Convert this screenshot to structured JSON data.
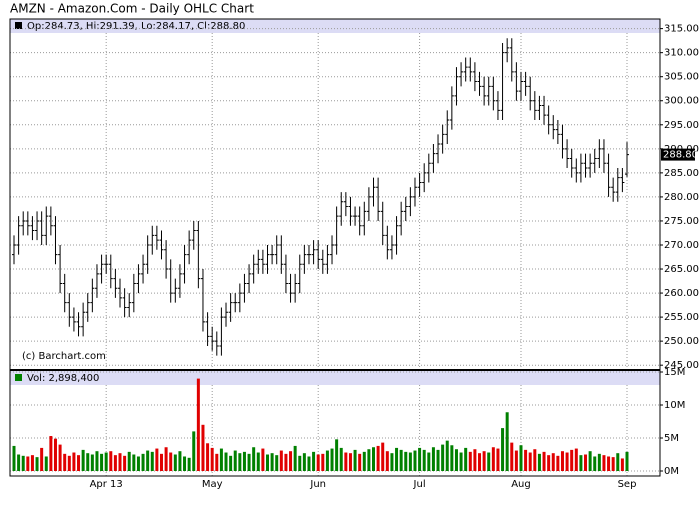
{
  "chart_data": {
    "type": "ohlc",
    "title": "AMZN - Amazon.Com - Daily OHLC Chart",
    "ohlc_legend": "Op:284.73, Hi:291.39, Lo:284.17, Cl:288.80",
    "volume_legend": "Vol: 2,898,400",
    "credit": "(c) Barchart.com",
    "last_price_label": "288.80",
    "categories": [
      null,
      null,
      null,
      null,
      null,
      null,
      null,
      null,
      null,
      null,
      null,
      null,
      null,
      null,
      null,
      null,
      null,
      null,
      null,
      null,
      "Apr 13",
      null,
      null,
      null,
      null,
      null,
      null,
      null,
      null,
      null,
      null,
      null,
      null,
      null,
      null,
      null,
      null,
      null,
      null,
      null,
      null,
      null,
      null,
      "May",
      null,
      null,
      null,
      null,
      null,
      null,
      null,
      null,
      null,
      null,
      null,
      null,
      null,
      null,
      null,
      null,
      null,
      null,
      null,
      null,
      null,
      null,
      "Jun",
      null,
      null,
      null,
      null,
      null,
      null,
      null,
      null,
      null,
      null,
      null,
      null,
      null,
      null,
      null,
      null,
      null,
      null,
      null,
      null,
      null,
      "Jul",
      null,
      null,
      null,
      null,
      null,
      null,
      null,
      null,
      null,
      null,
      null,
      null,
      null,
      null,
      null,
      null,
      null,
      null,
      null,
      null,
      null,
      "Aug",
      null,
      null,
      null,
      null,
      null,
      null,
      null,
      null,
      null,
      null,
      null,
      null,
      null,
      null,
      null,
      null,
      null,
      null,
      null,
      null,
      null,
      null,
      "Sep"
    ],
    "open": [
      268,
      270,
      274,
      275,
      274,
      273,
      275,
      272,
      276,
      274,
      268,
      262,
      258,
      255,
      254,
      253,
      256,
      258,
      261,
      264,
      266,
      266,
      263,
      261,
      259,
      257,
      258,
      262,
      264,
      266,
      270,
      272,
      271,
      269,
      265,
      260,
      261,
      264,
      268,
      271,
      273,
      263,
      254,
      251,
      250,
      249,
      255,
      256,
      258,
      258,
      260,
      262,
      264,
      266,
      267,
      266,
      268,
      268,
      270,
      266,
      262,
      260,
      262,
      266,
      268,
      268,
      269,
      267,
      266,
      268,
      270,
      276,
      279,
      278,
      276,
      276,
      274,
      277,
      280,
      282,
      277,
      272,
      269,
      270,
      274,
      277,
      278,
      280,
      282,
      283,
      285,
      287,
      289,
      291,
      293,
      296,
      301,
      305,
      306,
      307,
      306,
      304,
      303,
      301,
      303,
      300,
      298,
      310,
      311,
      306,
      302,
      304,
      303,
      300,
      298,
      299,
      297,
      295,
      294,
      293,
      290,
      288,
      286,
      285,
      287,
      286,
      287,
      288,
      290,
      287,
      282,
      281,
      284,
      284.73
    ],
    "high": [
      272,
      276,
      277,
      277,
      276,
      277,
      277,
      278,
      278,
      276,
      270,
      264,
      260,
      257,
      256,
      258,
      260,
      263,
      266,
      268,
      268,
      268,
      265,
      263,
      261,
      260,
      264,
      266,
      268,
      272,
      274,
      274,
      273,
      271,
      267,
      263,
      266,
      270,
      273,
      275,
      275,
      265,
      256,
      253,
      252,
      257,
      258,
      260,
      260,
      262,
      264,
      266,
      268,
      269,
      269,
      270,
      270,
      272,
      272,
      268,
      264,
      264,
      268,
      270,
      270,
      271,
      271,
      269,
      270,
      272,
      278,
      281,
      281,
      280,
      278,
      278,
      279,
      282,
      284,
      284,
      279,
      274,
      272,
      276,
      279,
      280,
      282,
      284,
      285,
      287,
      289,
      291,
      293,
      295,
      298,
      303,
      307,
      308,
      309,
      309,
      308,
      306,
      305,
      305,
      305,
      302,
      312,
      313,
      313,
      308,
      306,
      306,
      305,
      302,
      301,
      301,
      299,
      297,
      296,
      295,
      292,
      290,
      288,
      289,
      289,
      289,
      290,
      292,
      292,
      289,
      284,
      286,
      286,
      291.39
    ],
    "low": [
      266,
      268,
      272,
      272,
      271,
      271,
      270,
      270,
      272,
      266,
      260,
      256,
      253,
      252,
      251,
      251,
      254,
      256,
      259,
      262,
      264,
      261,
      259,
      257,
      255,
      255,
      256,
      260,
      262,
      264,
      268,
      269,
      267,
      263,
      258,
      258,
      259,
      262,
      266,
      269,
      261,
      252,
      249,
      248,
      247,
      247,
      253,
      254,
      256,
      256,
      258,
      260,
      262,
      264,
      264,
      264,
      266,
      266,
      264,
      260,
      258,
      258,
      260,
      264,
      266,
      266,
      265,
      264,
      264,
      266,
      268,
      274,
      276,
      274,
      274,
      272,
      272,
      275,
      278,
      275,
      270,
      267,
      267,
      268,
      272,
      275,
      276,
      278,
      280,
      281,
      283,
      285,
      287,
      289,
      291,
      294,
      299,
      303,
      304,
      304,
      302,
      301,
      299,
      299,
      298,
      296,
      296,
      308,
      304,
      300,
      300,
      301,
      298,
      296,
      296,
      295,
      293,
      292,
      291,
      288,
      286,
      284,
      283,
      283,
      284,
      284,
      285,
      286,
      285,
      280,
      279,
      279,
      281,
      284.17
    ],
    "close": [
      270,
      274,
      275,
      274,
      273,
      275,
      272,
      276,
      274,
      268,
      262,
      258,
      255,
      254,
      253,
      256,
      258,
      261,
      264,
      266,
      266,
      263,
      261,
      259,
      257,
      258,
      262,
      264,
      266,
      270,
      272,
      271,
      269,
      265,
      260,
      261,
      264,
      268,
      271,
      273,
      263,
      254,
      251,
      250,
      249,
      255,
      256,
      258,
      258,
      260,
      262,
      264,
      266,
      267,
      266,
      268,
      268,
      270,
      266,
      262,
      260,
      262,
      266,
      268,
      268,
      269,
      267,
      266,
      268,
      270,
      276,
      279,
      278,
      276,
      276,
      274,
      277,
      280,
      282,
      277,
      272,
      269,
      270,
      274,
      277,
      278,
      280,
      282,
      283,
      285,
      287,
      289,
      291,
      293,
      296,
      301,
      305,
      306,
      307,
      306,
      304,
      303,
      301,
      303,
      300,
      298,
      310,
      311,
      306,
      302,
      304,
      303,
      300,
      298,
      299,
      297,
      295,
      294,
      293,
      290,
      288,
      286,
      285,
      287,
      286,
      287,
      288,
      290,
      287,
      282,
      281,
      284,
      283,
      288.8
    ],
    "volume": [
      3.8,
      2.5,
      2.3,
      2.2,
      2.4,
      2.1,
      3.5,
      2.2,
      5.3,
      4.9,
      4.0,
      2.6,
      2.3,
      2.8,
      2.4,
      3.2,
      2.7,
      2.5,
      3.0,
      2.6,
      2.8,
      3.0,
      2.4,
      2.7,
      2.3,
      2.9,
      2.5,
      2.2,
      2.6,
      3.1,
      2.9,
      3.4,
      2.6,
      3.6,
      2.8,
      2.5,
      3.0,
      2.2,
      2.0,
      6.0,
      14.0,
      7.0,
      4.2,
      3.5,
      2.6,
      3.4,
      2.8,
      2.3,
      3.1,
      2.7,
      2.9,
      2.6,
      3.6,
      2.8,
      3.4,
      2.5,
      2.7,
      2.4,
      3.1,
      2.6,
      3.0,
      3.8,
      2.3,
      2.7,
      2.2,
      2.9,
      2.5,
      2.6,
      3.1,
      3.4,
      4.8,
      3.5,
      2.8,
      2.7,
      3.2,
      2.6,
      2.9,
      3.3,
      3.6,
      3.8,
      4.3,
      3.0,
      2.7,
      3.5,
      3.2,
      2.9,
      2.8,
      3.1,
      3.5,
      3.2,
      2.8,
      3.6,
      3.2,
      4.0,
      4.6,
      3.9,
      3.3,
      2.8,
      3.5,
      2.9,
      3.3,
      2.7,
      3.0,
      2.8,
      3.6,
      3.4,
      6.5,
      8.9,
      4.3,
      3.1,
      3.9,
      3.2,
      2.8,
      3.3,
      2.6,
      2.9,
      2.4,
      2.7,
      2.3,
      3.0,
      2.8,
      3.2,
      3.4,
      2.4,
      2.5,
      3.0,
      2.2,
      2.6,
      2.4,
      2.2,
      2.1,
      2.7,
      1.9,
      2.8984
    ],
    "ylim": [
      244,
      317
    ],
    "yticks": [
      {
        "value": 245,
        "label": "245.00"
      },
      {
        "value": 250,
        "label": "250.00"
      },
      {
        "value": 255,
        "label": "255.00"
      },
      {
        "value": 260,
        "label": "260.00"
      },
      {
        "value": 265,
        "label": "265.00"
      },
      {
        "value": 270,
        "label": "270.00"
      },
      {
        "value": 275,
        "label": "275.00"
      },
      {
        "value": 280,
        "label": "280.00"
      },
      {
        "value": 285,
        "label": "285.00"
      },
      {
        "value": 290,
        "label": "290.00"
      },
      {
        "value": 295,
        "label": "295.00"
      },
      {
        "value": 300,
        "label": "300.00"
      },
      {
        "value": 305,
        "label": "305.00"
      },
      {
        "value": 310,
        "label": "310.00"
      },
      {
        "value": 315,
        "label": "315.00"
      }
    ],
    "y2lim": [
      0,
      15
    ],
    "y2ticks": [
      {
        "value": 0,
        "label": "0M"
      },
      {
        "value": 5,
        "label": "5M"
      },
      {
        "value": 10,
        "label": "10M"
      },
      {
        "value": 15,
        "label": "15M"
      }
    ],
    "bar_color": "#000000",
    "up_color": "#008000",
    "down_color": "#e00000",
    "grid": true
  }
}
